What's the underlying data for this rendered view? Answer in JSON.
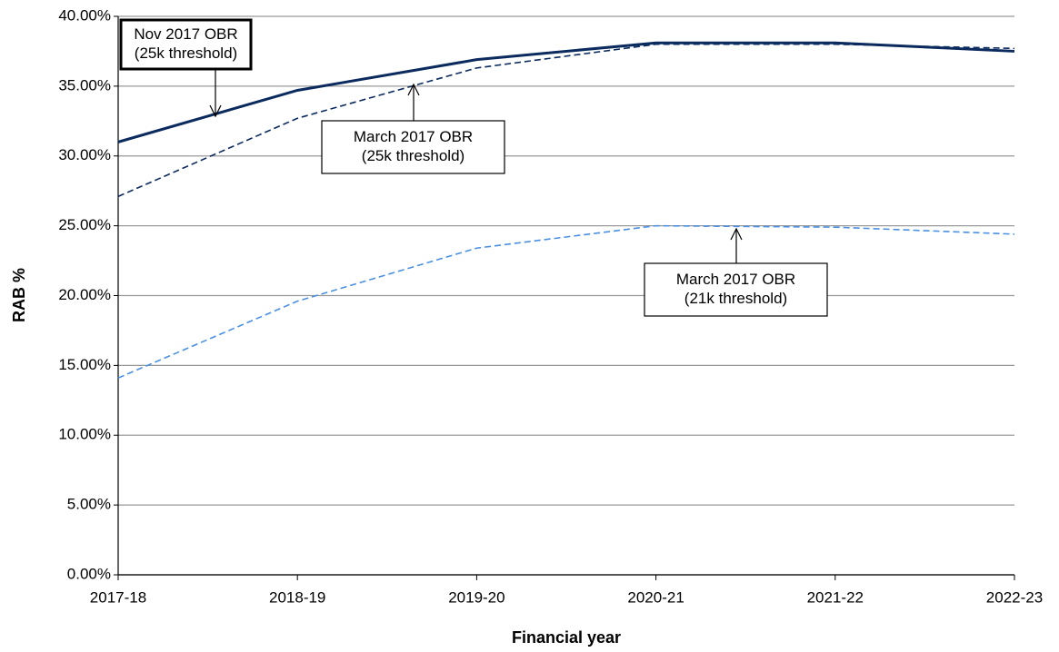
{
  "chart_data": {
    "type": "line",
    "x_label": "Financial year",
    "y_label": "RAB %",
    "categories": [
      "2017-18",
      "2018-19",
      "2019-20",
      "2020-21",
      "2021-22",
      "2022-23"
    ],
    "series": [
      {
        "color": "#0b2a5e",
        "dashed": false,
        "values": [
          31.0,
          34.7,
          36.9,
          38.1,
          38.1,
          37.5
        ]
      },
      {
        "color": "#0b2a5e",
        "dashed": true,
        "values": [
          27.1,
          32.7,
          36.3,
          38.0,
          38.0,
          37.7
        ]
      },
      {
        "color": "#4a90e2",
        "dashed": true,
        "values": [
          14.1,
          19.6,
          23.4,
          25.0,
          24.9,
          24.4
        ]
      }
    ],
    "annotations": [
      {
        "series": 0,
        "lines": [
          "Nov 2017 OBR",
          "(25k threshold)"
        ]
      },
      {
        "series": 1,
        "lines": [
          "March 2017 OBR",
          "(25k threshold)"
        ]
      },
      {
        "series": 2,
        "lines": [
          "March 2017 OBR",
          "(21k threshold)"
        ]
      }
    ],
    "ylim": [
      0,
      40
    ],
    "yticks": [
      {
        "value": 0,
        "label": "0.00%"
      },
      {
        "value": 5,
        "label": "5.00%"
      },
      {
        "value": 10,
        "label": "10.00%"
      },
      {
        "value": 15,
        "label": "15.00%"
      },
      {
        "value": 20,
        "label": "20.00%"
      },
      {
        "value": 25,
        "label": "25.00%"
      },
      {
        "value": 30,
        "label": "30.00%"
      },
      {
        "value": 35,
        "label": "35.00%"
      },
      {
        "value": 40,
        "label": "40.00%"
      }
    ],
    "grid": true
  }
}
